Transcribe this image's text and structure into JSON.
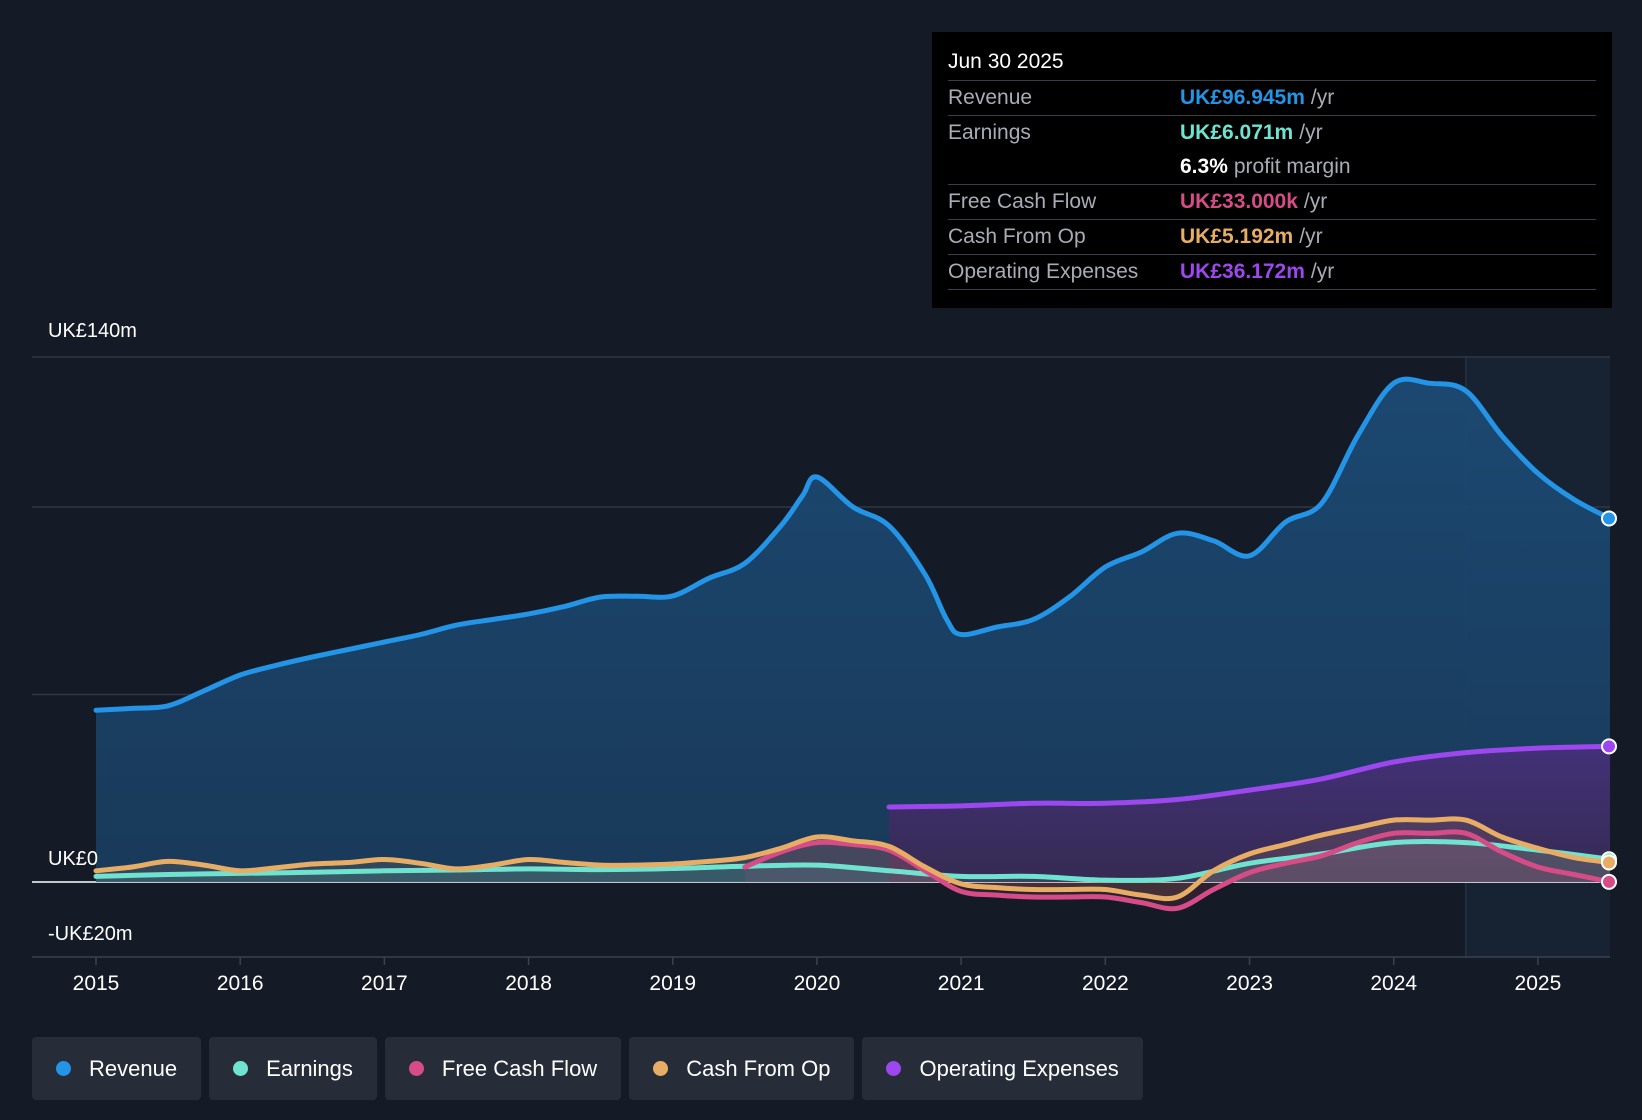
{
  "colors": {
    "revenue": "#2394e6",
    "earnings": "#6fe3cf",
    "fcf": "#d64c87",
    "cfo": "#e8ad64",
    "opex": "#9d47ee",
    "background": "#151b26"
  },
  "tooltip": {
    "date": "Jun 30 2025",
    "rows": [
      {
        "label": "Revenue",
        "value": "UK£96.945m",
        "unit": "/yr"
      },
      {
        "label": "Earnings",
        "value": "UK£6.071m",
        "unit": "/yr"
      },
      {
        "label": "",
        "value": "6.3%",
        "unit": "profit margin"
      },
      {
        "label": "Free Cash Flow",
        "value": "UK£33.000k",
        "unit": "/yr"
      },
      {
        "label": "Cash From Op",
        "value": "UK£5.192m",
        "unit": "/yr"
      },
      {
        "label": "Operating Expenses",
        "value": "UK£36.172m",
        "unit": "/yr"
      }
    ]
  },
  "legend": [
    {
      "label": "Revenue",
      "key": "revenue"
    },
    {
      "label": "Earnings",
      "key": "earnings"
    },
    {
      "label": "Free Cash Flow",
      "key": "fcf"
    },
    {
      "label": "Cash From Op",
      "key": "cfo"
    },
    {
      "label": "Operating Expenses",
      "key": "opex"
    }
  ],
  "chart_data": {
    "type": "area",
    "title": "",
    "xlabel": "",
    "ylabel": "",
    "y_axis_labels": [
      "UK£140m",
      "UK£0",
      "-UK£20m"
    ],
    "ylim": [
      -20,
      140
    ],
    "xlim": [
      2015,
      2025.5
    ],
    "x_ticks": [
      "2015",
      "2016",
      "2017",
      "2018",
      "2019",
      "2020",
      "2021",
      "2022",
      "2023",
      "2024",
      "2025"
    ],
    "highlight_from": 2024.5,
    "series": [
      {
        "name": "Revenue",
        "key": "revenue",
        "x": [
          2015,
          2015.25,
          2015.5,
          2015.75,
          2016,
          2016.25,
          2016.5,
          2016.75,
          2017,
          2017.25,
          2017.5,
          2017.75,
          2018,
          2018.25,
          2018.5,
          2018.75,
          2019,
          2019.25,
          2019.5,
          2019.75,
          2019.9,
          2020,
          2020.25,
          2020.5,
          2020.75,
          2020.9,
          2021,
          2021.25,
          2021.5,
          2021.75,
          2022,
          2022.25,
          2022.5,
          2022.75,
          2023,
          2023.25,
          2023.5,
          2023.75,
          2024,
          2024.25,
          2024.5,
          2024.75,
          2025,
          2025.25,
          2025.5
        ],
        "values": [
          45.8,
          46.3,
          47.0,
          51.0,
          55.2,
          57.8,
          60.0,
          62.0,
          64.0,
          66.0,
          68.5,
          70.0,
          71.5,
          73.5,
          76.0,
          76.2,
          76.3,
          81.0,
          85.0,
          95.0,
          103.0,
          108.0,
          100.0,
          95.0,
          82.0,
          70.0,
          66.0,
          68.0,
          70.0,
          76.0,
          84.0,
          88.0,
          93.0,
          91.0,
          87.0,
          96.0,
          101.0,
          119.0,
          133.0,
          133.0,
          131.0,
          119.0,
          109.0,
          102.0,
          96.945
        ]
      },
      {
        "name": "Earnings",
        "key": "earnings",
        "x": [
          2015,
          2015.5,
          2016,
          2016.5,
          2017,
          2017.5,
          2018,
          2018.5,
          2019,
          2019.5,
          2020,
          2020.5,
          2021,
          2021.5,
          2022,
          2022.5,
          2023,
          2023.5,
          2024,
          2024.5,
          2025,
          2025.5
        ],
        "values": [
          1.5,
          2.0,
          2.3,
          2.6,
          3.0,
          3.2,
          3.5,
          3.3,
          3.6,
          4.2,
          4.5,
          3.0,
          1.5,
          1.5,
          0.5,
          1.0,
          5.0,
          7.5,
          10.5,
          10.5,
          8.5,
          6.071
        ]
      },
      {
        "name": "Free Cash Flow",
        "key": "fcf",
        "x": [
          2019.5,
          2019.75,
          2020,
          2020.25,
          2020.5,
          2020.75,
          2021,
          2021.25,
          2021.5,
          2021.75,
          2022,
          2022.25,
          2022.5,
          2022.75,
          2023,
          2023.25,
          2023.5,
          2023.75,
          2024,
          2024.25,
          2024.5,
          2024.75,
          2025,
          2025.25,
          2025.5
        ],
        "values": [
          4.0,
          8.0,
          10.5,
          10.0,
          8.5,
          3.0,
          -2.5,
          -3.5,
          -4.0,
          -4.0,
          -4.0,
          -5.5,
          -7.0,
          -2.0,
          2.5,
          5.0,
          7.0,
          10.5,
          13.0,
          13.0,
          13.0,
          8.0,
          4.0,
          2.0,
          0.033
        ]
      },
      {
        "name": "Cash From Op",
        "key": "cfo",
        "x": [
          2015,
          2015.25,
          2015.5,
          2015.75,
          2016,
          2016.25,
          2016.5,
          2016.75,
          2017,
          2017.25,
          2017.5,
          2017.75,
          2018,
          2018.25,
          2018.5,
          2018.75,
          2019,
          2019.25,
          2019.5,
          2019.75,
          2020,
          2020.25,
          2020.5,
          2020.75,
          2021,
          2021.25,
          2021.5,
          2021.75,
          2022,
          2022.25,
          2022.5,
          2022.75,
          2023,
          2023.25,
          2023.5,
          2023.75,
          2024,
          2024.25,
          2024.5,
          2024.75,
          2025,
          2025.25,
          2025.5
        ],
        "values": [
          3.0,
          4.0,
          5.5,
          4.5,
          3.0,
          3.8,
          4.8,
          5.2,
          6.0,
          5.0,
          3.5,
          4.5,
          6.0,
          5.2,
          4.5,
          4.5,
          4.8,
          5.5,
          6.5,
          9.0,
          12.0,
          11.0,
          9.5,
          4.0,
          -0.5,
          -1.5,
          -2.0,
          -2.0,
          -2.0,
          -3.5,
          -4.0,
          3.0,
          7.5,
          10.0,
          12.5,
          14.5,
          16.5,
          16.5,
          16.5,
          12.0,
          9.0,
          6.5,
          5.192
        ]
      },
      {
        "name": "Operating Expenses",
        "key": "opex",
        "x": [
          2020.5,
          2021,
          2021.5,
          2022,
          2022.5,
          2023,
          2023.5,
          2024,
          2024.5,
          2025,
          2025.5
        ],
        "values": [
          20.0,
          20.3,
          21.0,
          21.0,
          22.0,
          24.5,
          27.5,
          32.0,
          34.5,
          35.7,
          36.172
        ]
      }
    ]
  }
}
